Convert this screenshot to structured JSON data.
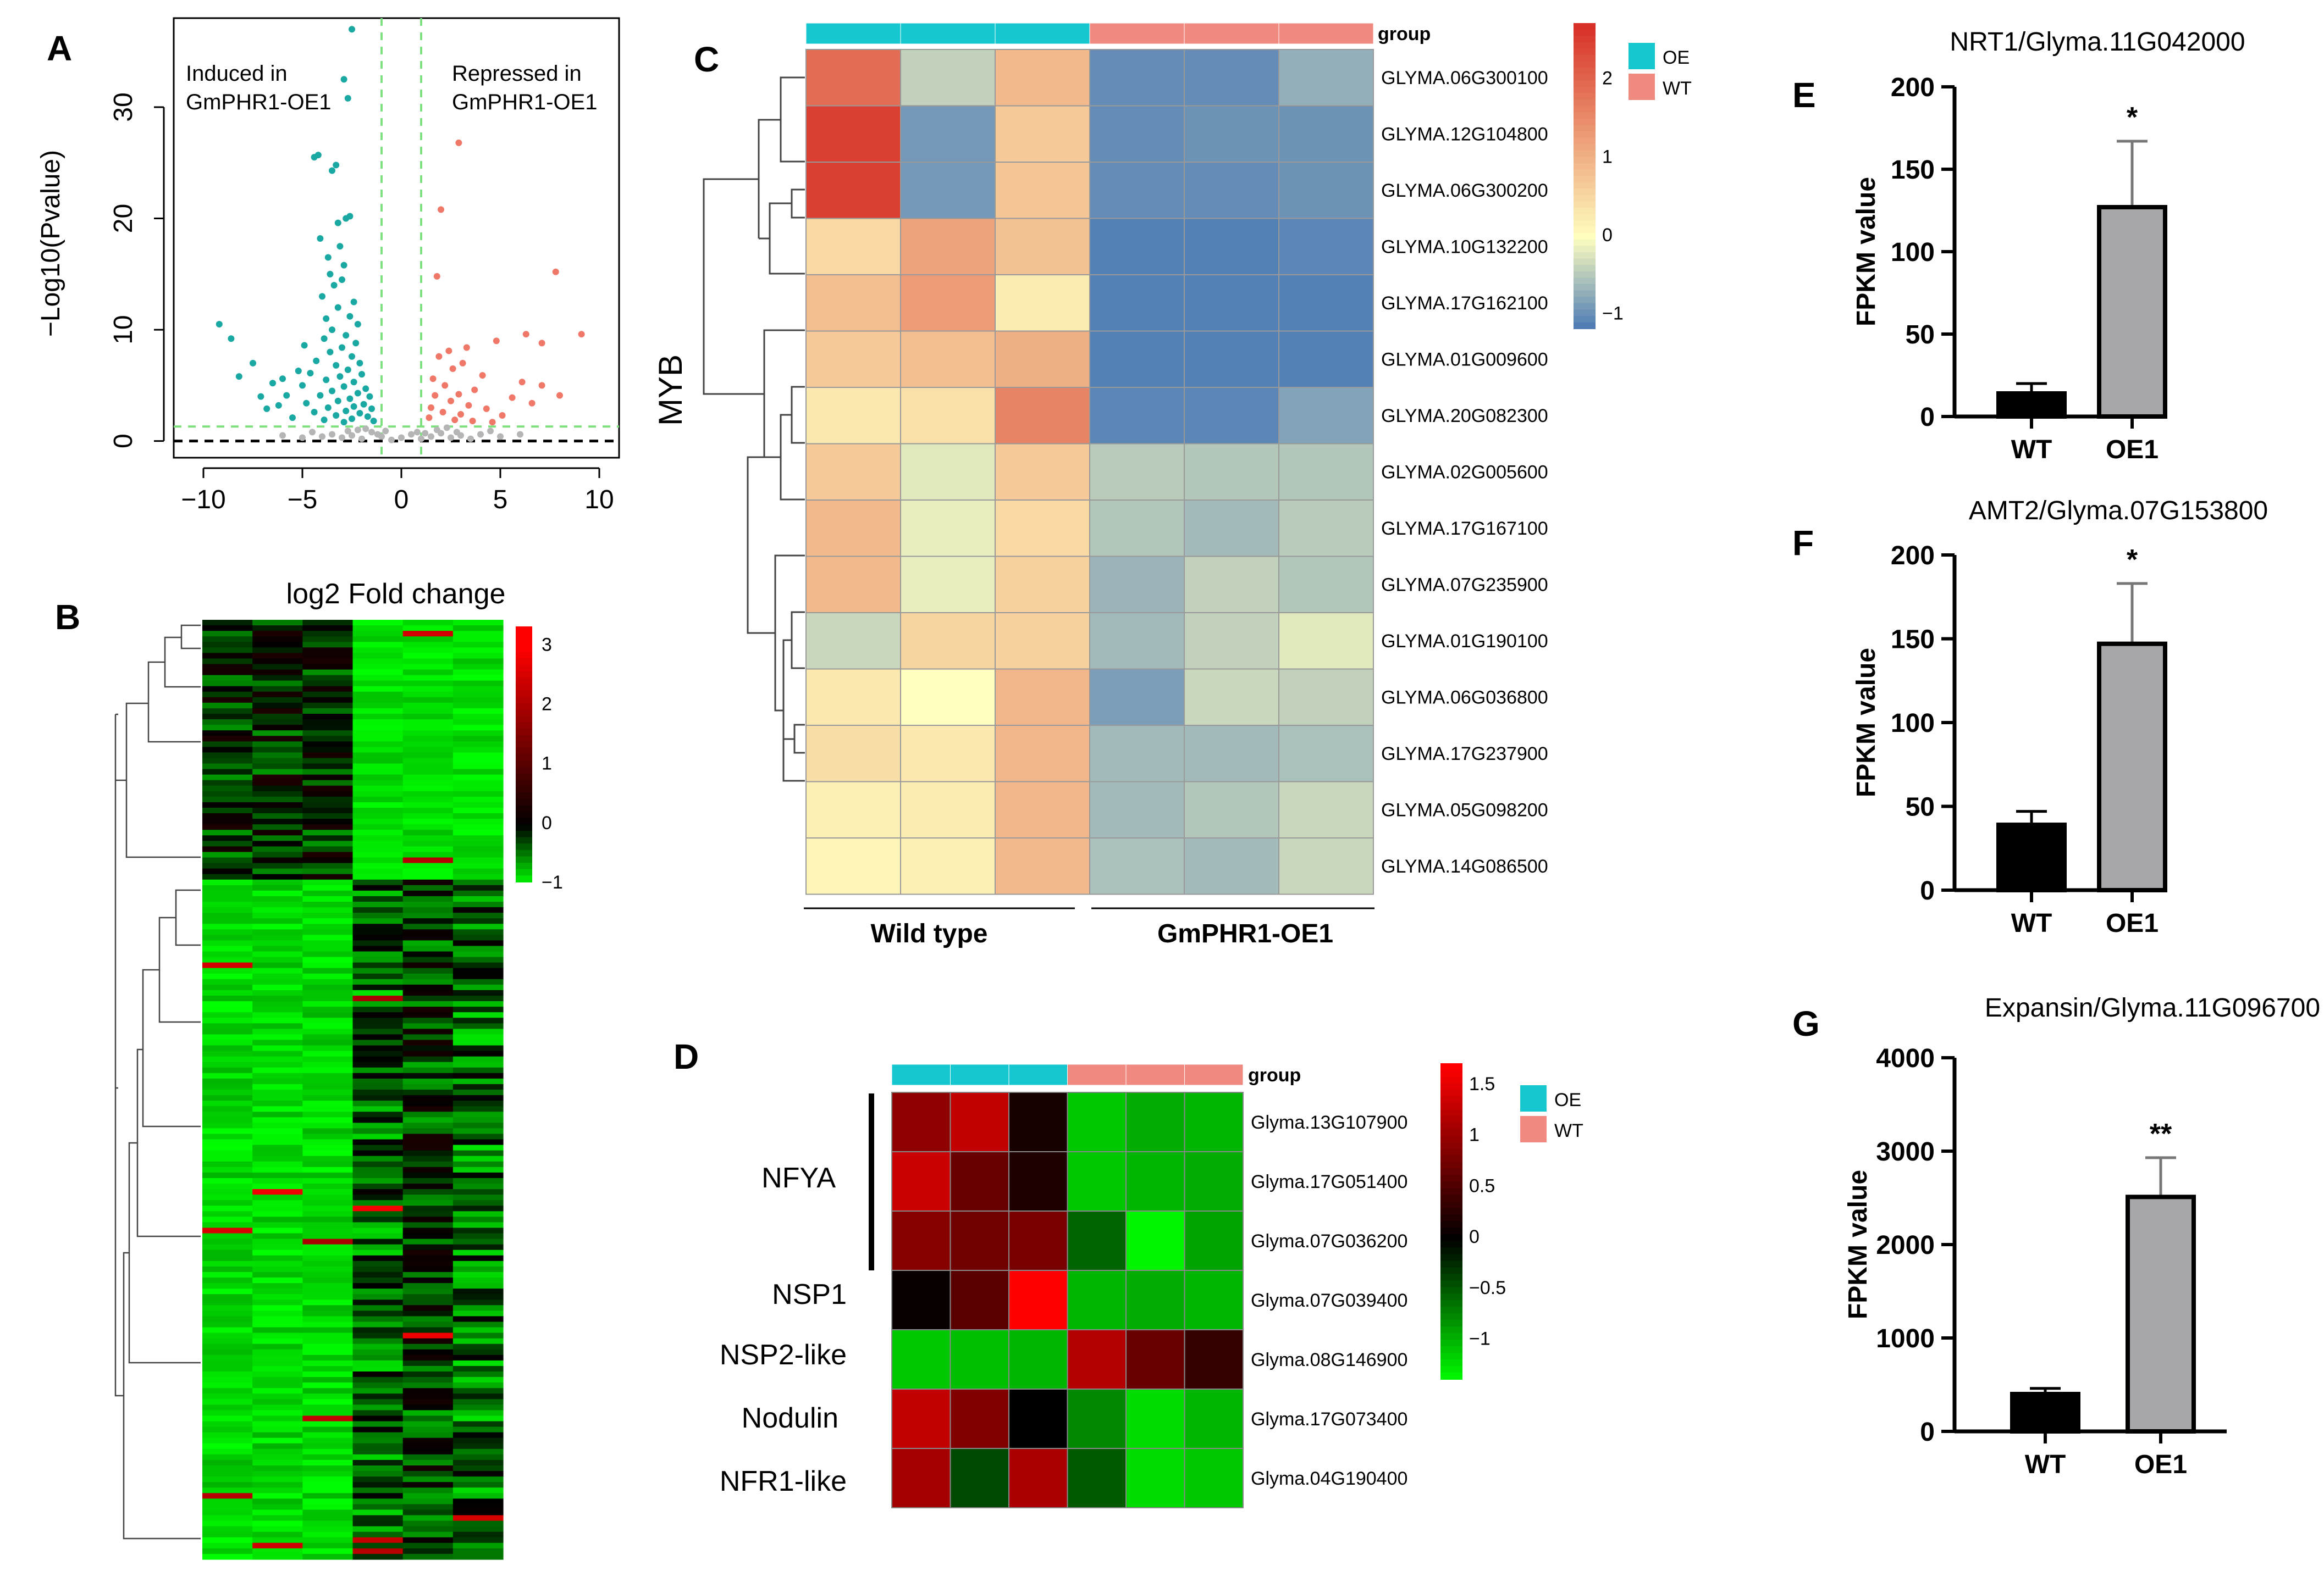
{
  "colors": {
    "oe_teal": "#17C7D0",
    "wt_salmon": "#F08A80",
    "volcano_induced": "#1AA8A3",
    "volcano_repressed": "#F07868",
    "volcano_ns": "#B5B5B5",
    "threshold_line": "#7FE07F",
    "bar_wt": "#000000",
    "bar_oe": "#A7A7AA",
    "heat_low": "#4575B4",
    "heat_mid": "#FFFFBF",
    "heat_high": "#D73027",
    "rg_low": "#00FF00",
    "rg_mid": "#000000",
    "rg_high": "#FF0000"
  },
  "panel_labels": {
    "a": "A",
    "b": "B",
    "c": "C",
    "d": "D",
    "e": "E",
    "f": "F",
    "g": "G"
  },
  "chart_data": [
    {
      "id": "A",
      "type": "scatter",
      "title": "",
      "xlabel": "",
      "ylabel": "−Log10(Pvalue)",
      "xlim": [
        -11.5,
        11
      ],
      "ylim": [
        -1.5,
        38
      ],
      "x_ticks": [
        -10,
        -5,
        0,
        5,
        10
      ],
      "x_tick_labels": [
        "−10",
        "−5",
        "0",
        "5",
        "10"
      ],
      "y_ticks": [
        0,
        10,
        20,
        30
      ],
      "y_tick_labels": [
        "0",
        "10",
        "20",
        "30"
      ],
      "fold_change_thresholds": [
        -1,
        1
      ],
      "pvalue_threshold": 1.3,
      "annotations": {
        "induced_line1": "Induced in",
        "induced_line2": "GmPHR1-OE1",
        "repressed_line1": "Repressed in",
        "repressed_line2": "GmPHR1-OE1"
      },
      "series": [
        {
          "name": "induced",
          "points": [
            [
              -2.5,
              37
            ],
            [
              -2.9,
              32.5
            ],
            [
              -2.7,
              30.8
            ],
            [
              -4.2,
              25.7
            ],
            [
              -3.3,
              24.8
            ],
            [
              -3.5,
              24.3
            ],
            [
              -4.4,
              25.5
            ],
            [
              -2.6,
              20.2
            ],
            [
              -2.8,
              20.0
            ],
            [
              -3.1,
              17.5
            ],
            [
              -4.1,
              18.2
            ],
            [
              -3.7,
              16.5
            ],
            [
              -3.4,
              14.0
            ],
            [
              -3.0,
              14.5
            ],
            [
              -4.0,
              13.0
            ],
            [
              -2.4,
              12.5
            ],
            [
              -3.2,
              12.0
            ],
            [
              -2.6,
              11.2
            ],
            [
              -3.8,
              11.0
            ],
            [
              -2.2,
              10.5
            ],
            [
              -3.5,
              10.0
            ],
            [
              -2.8,
              9.5
            ],
            [
              -3.9,
              9.2
            ],
            [
              -2.3,
              8.8
            ],
            [
              -3.0,
              8.4
            ],
            [
              -3.6,
              8.0
            ],
            [
              -2.5,
              7.6
            ],
            [
              -4.3,
              7.2
            ],
            [
              -2.1,
              7.0
            ],
            [
              -3.3,
              6.8
            ],
            [
              -2.7,
              6.4
            ],
            [
              -4.6,
              6.1
            ],
            [
              -2.0,
              6.0
            ],
            [
              -3.1,
              5.8
            ],
            [
              -3.8,
              5.5
            ],
            [
              -2.4,
              5.3
            ],
            [
              -5.0,
              5.0
            ],
            [
              -2.9,
              4.9
            ],
            [
              -1.8,
              4.7
            ],
            [
              -3.5,
              4.5
            ],
            [
              -2.2,
              4.3
            ],
            [
              -4.1,
              4.1
            ],
            [
              -1.6,
              4.0
            ],
            [
              -2.6,
              3.8
            ],
            [
              -3.2,
              3.6
            ],
            [
              -4.8,
              3.4
            ],
            [
              -1.9,
              3.3
            ],
            [
              -2.4,
              3.1
            ],
            [
              -3.7,
              3.0
            ],
            [
              -1.5,
              2.9
            ],
            [
              -2.8,
              2.7
            ],
            [
              -4.4,
              2.6
            ],
            [
              -2.1,
              2.5
            ],
            [
              -3.3,
              2.3
            ],
            [
              -1.7,
              2.2
            ],
            [
              -5.5,
              2.1
            ],
            [
              -2.5,
              2.0
            ],
            [
              -3.9,
              1.9
            ],
            [
              -1.4,
              1.8
            ],
            [
              -2.9,
              1.7
            ],
            [
              -6.2,
              3.2
            ],
            [
              -6.5,
              5.2
            ],
            [
              -5.8,
              4.1
            ],
            [
              -7.1,
              4.0
            ],
            [
              -6.8,
              2.9
            ],
            [
              -7.5,
              7.0
            ],
            [
              -8.2,
              5.8
            ],
            [
              -8.6,
              9.2
            ],
            [
              -9.2,
              10.5
            ],
            [
              -5.2,
              6.3
            ],
            [
              -4.9,
              8.6
            ],
            [
              -6.0,
              5.6
            ],
            [
              -3.6,
              15.0
            ],
            [
              -2.9,
              15.8
            ],
            [
              -3.2,
              19.6
            ]
          ]
        },
        {
          "name": "repressed",
          "points": [
            [
              2.9,
              26.8
            ],
            [
              2.0,
              20.8
            ],
            [
              7.8,
              15.2
            ],
            [
              1.8,
              14.8
            ],
            [
              9.1,
              9.6
            ],
            [
              6.3,
              9.6
            ],
            [
              7.1,
              8.8
            ],
            [
              4.8,
              9.0
            ],
            [
              3.3,
              8.4
            ],
            [
              2.4,
              8.1
            ],
            [
              1.9,
              7.6
            ],
            [
              3.1,
              7.0
            ],
            [
              2.6,
              6.5
            ],
            [
              4.1,
              5.9
            ],
            [
              6.1,
              5.3
            ],
            [
              1.6,
              5.6
            ],
            [
              2.2,
              5.0
            ],
            [
              3.7,
              4.6
            ],
            [
              2.9,
              4.2
            ],
            [
              5.6,
              3.9
            ],
            [
              6.6,
              3.4
            ],
            [
              1.7,
              4.1
            ],
            [
              2.5,
              3.6
            ],
            [
              3.4,
              3.2
            ],
            [
              4.3,
              2.9
            ],
            [
              1.5,
              3.0
            ],
            [
              2.1,
              2.6
            ],
            [
              3.0,
              2.4
            ],
            [
              5.1,
              2.3
            ],
            [
              7.1,
              5.0
            ],
            [
              1.4,
              2.1
            ],
            [
              2.7,
              1.9
            ],
            [
              3.6,
              1.8
            ],
            [
              4.6,
              1.7
            ],
            [
              8.0,
              4.1
            ]
          ]
        },
        {
          "name": "not_significant",
          "points": [
            [
              -3.0,
              0.3
            ],
            [
              -2.5,
              0.5
            ],
            [
              -2.0,
              0.2
            ],
            [
              -1.5,
              0.8
            ],
            [
              -1.0,
              0.4
            ],
            [
              -0.5,
              0.1
            ],
            [
              0.0,
              0.3
            ],
            [
              0.5,
              0.6
            ],
            [
              1.0,
              0.2
            ],
            [
              1.5,
              0.4
            ],
            [
              2.0,
              0.7
            ],
            [
              2.5,
              0.3
            ],
            [
              3.0,
              0.5
            ],
            [
              3.5,
              0.2
            ],
            [
              -3.5,
              0.6
            ],
            [
              -4.0,
              0.4
            ],
            [
              -4.5,
              0.8
            ],
            [
              -5.0,
              0.3
            ],
            [
              4.0,
              0.6
            ],
            [
              4.5,
              0.9
            ],
            [
              5.0,
              0.4
            ],
            [
              -2.2,
              1.0
            ],
            [
              -1.8,
              1.1
            ],
            [
              1.8,
              1.0
            ],
            [
              2.3,
              1.2
            ],
            [
              -0.8,
              0.9
            ],
            [
              0.8,
              0.8
            ],
            [
              -6.0,
              0.5
            ],
            [
              6.0,
              0.6
            ],
            [
              -2.7,
              0.9
            ],
            [
              2.8,
              0.8
            ],
            [
              -1.2,
              0.6
            ],
            [
              1.2,
              0.7
            ]
          ]
        }
      ]
    },
    {
      "id": "B",
      "type": "heatmap",
      "title": "log2 Fold change",
      "legend_ticks": [
        "3",
        "2",
        "1",
        "0",
        "−1"
      ],
      "legend_values": [
        3,
        2,
        1,
        0,
        -1
      ],
      "n_columns": 6
    },
    {
      "id": "C",
      "type": "heatmap",
      "title": "",
      "side_label": "MYB",
      "group_label": "group",
      "legend_groups": [
        "OE",
        "WT"
      ],
      "column_groups": [
        "OE",
        "OE",
        "OE",
        "WT",
        "WT",
        "WT"
      ],
      "x_group_labels": [
        "Wild type",
        "GmPHR1-OE1"
      ],
      "legend_ticks": [
        "2",
        "1",
        "0",
        "−1"
      ],
      "legend_values": [
        2,
        1,
        0,
        -1
      ],
      "vmin": -1.2,
      "vmax": 2.7,
      "rows": [
        "GLYMA.06G300100",
        "GLYMA.12G104800",
        "GLYMA.06G300200",
        "GLYMA.10G132200",
        "GLYMA.17G162100",
        "GLYMA.01G009600",
        "GLYMA.20G082300",
        "GLYMA.02G005600",
        "GLYMA.17G167100",
        "GLYMA.07G235900",
        "GLYMA.01G190100",
        "GLYMA.06G036800",
        "GLYMA.17G237900",
        "GLYMA.05G098200",
        "GLYMA.14G086500"
      ],
      "values": [
        [
          1.9,
          -0.4,
          0.9,
          -1.0,
          -1.0,
          -0.7
        ],
        [
          2.5,
          -0.9,
          0.7,
          -1.0,
          -0.95,
          -0.95
        ],
        [
          2.5,
          -0.9,
          0.75,
          -1.0,
          -1.0,
          -0.95
        ],
        [
          0.5,
          1.2,
          0.8,
          -1.1,
          -1.1,
          -1.05
        ],
        [
          0.85,
          1.3,
          0.25,
          -1.1,
          -1.1,
          -1.1
        ],
        [
          0.7,
          0.85,
          1.05,
          -1.1,
          -1.1,
          -1.1
        ],
        [
          0.3,
          0.4,
          1.6,
          -1.05,
          -1.05,
          -0.8
        ],
        [
          0.7,
          -0.2,
          0.7,
          -0.45,
          -0.5,
          -0.5
        ],
        [
          0.9,
          -0.15,
          0.5,
          -0.5,
          -0.6,
          -0.45
        ],
        [
          0.9,
          -0.15,
          0.6,
          -0.65,
          -0.4,
          -0.5
        ],
        [
          -0.35,
          0.55,
          0.6,
          -0.6,
          -0.4,
          -0.2
        ],
        [
          0.3,
          0.0,
          0.95,
          -0.85,
          -0.35,
          -0.4
        ],
        [
          0.45,
          0.3,
          0.95,
          -0.6,
          -0.6,
          -0.55
        ],
        [
          0.2,
          0.25,
          0.95,
          -0.6,
          -0.5,
          -0.35
        ],
        [
          0.15,
          0.2,
          0.9,
          -0.55,
          -0.6,
          -0.35
        ]
      ]
    },
    {
      "id": "D",
      "type": "heatmap",
      "title": "",
      "group_label": "group",
      "legend_groups": [
        "OE",
        "WT"
      ],
      "column_groups": [
        "OE",
        "OE",
        "OE",
        "WT",
        "WT",
        "WT"
      ],
      "legend_ticks": [
        "1.5",
        "1",
        "0.5",
        "0",
        "−0.5",
        "−1"
      ],
      "legend_values": [
        1.5,
        1,
        0.5,
        0,
        -0.5,
        -1
      ],
      "vmin": -1.4,
      "vmax": 1.7,
      "row_groups": [
        "NFYA",
        "NSP1",
        "NSP2-like",
        "Nodulin",
        "NFR1-like"
      ],
      "rows": [
        "Glyma.13G107900",
        "Glyma.17G051400",
        "Glyma.07G036200",
        "Glyma.07G039400",
        "Glyma.08G146900",
        "Glyma.17G073400",
        "Glyma.04G190400"
      ],
      "values": [
        [
          0.95,
          1.3,
          0.15,
          -1.1,
          -0.95,
          -1.0
        ],
        [
          1.35,
          0.7,
          0.2,
          -1.1,
          -1.0,
          -0.95
        ],
        [
          0.9,
          0.75,
          0.8,
          -0.55,
          -1.35,
          -0.9
        ],
        [
          0.05,
          0.6,
          1.7,
          -1.0,
          -0.95,
          -1.0
        ],
        [
          -1.1,
          -1.05,
          -1.0,
          1.2,
          0.7,
          0.35
        ],
        [
          1.3,
          0.85,
          0.0,
          -0.75,
          -1.2,
          -1.0
        ],
        [
          1.1,
          -0.4,
          1.15,
          -0.5,
          -1.2,
          -1.1
        ]
      ]
    },
    {
      "id": "E",
      "type": "bar",
      "title": "NRT1/Glyma.11G042000",
      "xlabel": "",
      "ylabel": "FPKM value",
      "ylim": [
        0,
        200
      ],
      "y_ticks": [
        "0",
        "50",
        "100",
        "150",
        "200"
      ],
      "categories": [
        "WT",
        "OE1"
      ],
      "values": [
        14,
        127
      ],
      "errors": [
        6,
        40
      ],
      "significance": "*"
    },
    {
      "id": "F",
      "type": "bar",
      "title": "AMT2/Glyma.07G153800",
      "xlabel": "",
      "ylabel": "FPKM value",
      "ylim": [
        0,
        200
      ],
      "y_ticks": [
        "0",
        "50",
        "100",
        "150",
        "200"
      ],
      "categories": [
        "WT",
        "OE1"
      ],
      "values": [
        39,
        147
      ],
      "errors": [
        8,
        36
      ],
      "significance": "*"
    },
    {
      "id": "G",
      "type": "bar",
      "title": "Expansin/Glyma.11G096700",
      "xlabel": "",
      "ylabel": "FPKM value",
      "ylim": [
        0,
        4000
      ],
      "y_ticks": [
        "0",
        "1000",
        "2000",
        "3000",
        "4000"
      ],
      "categories": [
        "WT",
        "OE1"
      ],
      "values": [
        400,
        2510
      ],
      "errors": [
        60,
        420
      ],
      "significance": "**"
    }
  ]
}
